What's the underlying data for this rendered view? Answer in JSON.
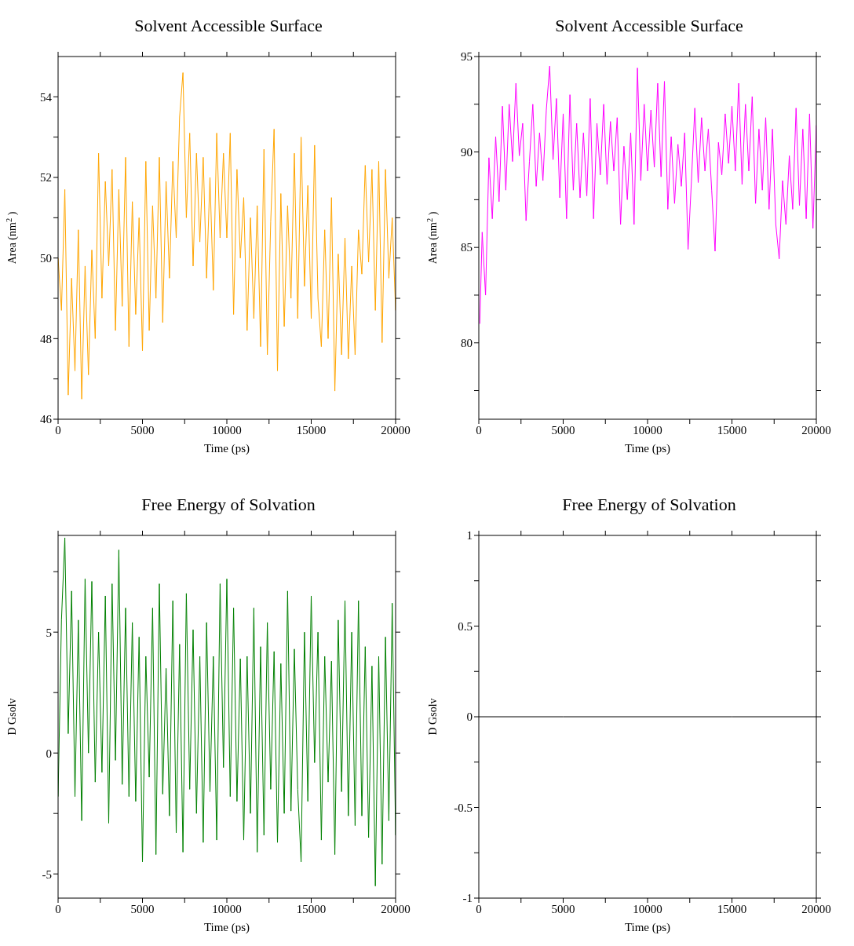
{
  "chart_data": [
    {
      "type": "line",
      "title": "Solvent Accessible Surface",
      "xlabel": "Time (ps)",
      "ylabel": "Area (nm$^{2}$)",
      "color": "#ffa500",
      "xlim": [
        0,
        20000
      ],
      "xticks": [
        0,
        {
          "value": 2500,
          "label": null
        },
        5000,
        {
          "value": 7500,
          "label": null
        },
        10000,
        {
          "value": 12500,
          "label": null
        },
        15000,
        {
          "value": 17500,
          "label": null
        },
        20000
      ],
      "ylim": [
        46,
        55
      ],
      "yticks": [
        46,
        {
          "value": 47,
          "label": null
        },
        48,
        {
          "value": 49,
          "label": null
        },
        50,
        {
          "value": 51,
          "label": null
        },
        52,
        {
          "value": 53,
          "label": null
        },
        54
      ],
      "x": [
        0,
        200,
        400,
        600,
        800,
        1000,
        1200,
        1400,
        1600,
        1800,
        2000,
        2200,
        2400,
        2600,
        2800,
        3000,
        3200,
        3400,
        3600,
        3800,
        4000,
        4200,
        4400,
        4600,
        4800,
        5000,
        5200,
        5400,
        5600,
        5800,
        6000,
        6200,
        6400,
        6600,
        6800,
        7000,
        7200,
        7400,
        7600,
        7800,
        8000,
        8200,
        8400,
        8600,
        8800,
        9000,
        9200,
        9400,
        9600,
        9800,
        10000,
        10200,
        10400,
        10600,
        10800,
        11000,
        11200,
        11400,
        11600,
        11800,
        12000,
        12200,
        12400,
        12600,
        12800,
        13000,
        13200,
        13400,
        13600,
        13800,
        14000,
        14200,
        14400,
        14600,
        14800,
        15000,
        15200,
        15400,
        15600,
        15800,
        16000,
        16200,
        16400,
        16600,
        16800,
        17000,
        17200,
        17400,
        17600,
        17800,
        18000,
        18200,
        18400,
        18600,
        18800,
        19000,
        19200,
        19400,
        19600,
        19800,
        20000
      ],
      "values": [
        50,
        48.7,
        51.7,
        46.6,
        49.5,
        47.2,
        50.7,
        46.5,
        49.8,
        47.1,
        50.2,
        48.0,
        52.6,
        49.0,
        51.9,
        49.8,
        52.2,
        48.2,
        51.7,
        48.8,
        52.5,
        47.8,
        51.4,
        48.6,
        51.0,
        47.7,
        52.4,
        48.2,
        51.3,
        49.0,
        52.5,
        48.4,
        51.9,
        49.5,
        52.4,
        50.5,
        53.5,
        54.6,
        51.0,
        53.1,
        49.8,
        52.6,
        50.4,
        52.5,
        49.5,
        52.0,
        49.2,
        53.1,
        50.5,
        52.6,
        50.5,
        53.1,
        48.6,
        52.2,
        50.0,
        51.5,
        48.2,
        51.0,
        48.5,
        51.3,
        47.8,
        52.7,
        47.6,
        50.9,
        53.2,
        47.2,
        51.6,
        48.3,
        51.3,
        49.0,
        52.6,
        48.5,
        53.0,
        49.3,
        51.8,
        48.5,
        52.8,
        49.0,
        47.8,
        50.7,
        48.0,
        51.5,
        46.7,
        50.1,
        47.6,
        50.5,
        47.5,
        49.8,
        47.6,
        50.7,
        49.6,
        52.3,
        49.9,
        52.2,
        48.7,
        52.4,
        47.9,
        52.2,
        49.5,
        51.0,
        48.7
      ]
    },
    {
      "type": "line",
      "title": "Solvent Accessible Surface",
      "xlabel": "Time (ps)",
      "ylabel": "Area (nm$^{2}$)",
      "color": "#ff00ff",
      "xlim": [
        0,
        20000
      ],
      "xticks": [
        0,
        {
          "value": 2500,
          "label": null
        },
        5000,
        {
          "value": 7500,
          "label": null
        },
        10000,
        {
          "value": 12500,
          "label": null
        },
        15000,
        {
          "value": 17500,
          "label": null
        },
        20000
      ],
      "ylim": [
        76,
        95
      ],
      "yticks": [
        {
          "value": 77.5,
          "label": null
        },
        80,
        {
          "value": 82.5,
          "label": null
        },
        85,
        {
          "value": 87.5,
          "label": null
        },
        90,
        {
          "value": 92.5,
          "label": null
        },
        95
      ],
      "x": [
        60,
        200,
        400,
        600,
        800,
        1000,
        1200,
        1400,
        1600,
        1800,
        2000,
        2200,
        2400,
        2600,
        2800,
        3000,
        3200,
        3400,
        3600,
        3800,
        4000,
        4200,
        4400,
        4600,
        4800,
        5000,
        5200,
        5400,
        5600,
        5800,
        6000,
        6200,
        6400,
        6600,
        6800,
        7000,
        7200,
        7400,
        7600,
        7800,
        8000,
        8200,
        8400,
        8600,
        8800,
        9000,
        9200,
        9400,
        9600,
        9800,
        10000,
        10200,
        10400,
        10600,
        10800,
        11000,
        11200,
        11400,
        11600,
        11800,
        12000,
        12200,
        12400,
        12600,
        12800,
        13000,
        13200,
        13400,
        13600,
        13800,
        14000,
        14200,
        14400,
        14600,
        14800,
        15000,
        15200,
        15400,
        15600,
        15800,
        16000,
        16200,
        16400,
        16600,
        16800,
        17000,
        17200,
        17400,
        17600,
        17800,
        18000,
        18200,
        18400,
        18600,
        18800,
        19000,
        19200,
        19400,
        19600,
        19800,
        20000
      ],
      "values": [
        81.0,
        85.8,
        82.5,
        89.7,
        86.5,
        90.8,
        87.4,
        92.4,
        88.0,
        92.5,
        89.5,
        93.6,
        89.8,
        91.5,
        86.4,
        89.5,
        92.5,
        88.2,
        91.0,
        88.5,
        92.2,
        94.5,
        89.6,
        92.8,
        87.6,
        92.0,
        86.5,
        93.0,
        88.0,
        91.5,
        87.6,
        91.0,
        87.7,
        92.8,
        86.5,
        91.5,
        88.8,
        92.5,
        88.3,
        91.6,
        89.0,
        91.8,
        86.2,
        90.3,
        87.5,
        91.0,
        86.2,
        94.4,
        88.5,
        92.5,
        89.0,
        92.2,
        89.2,
        93.6,
        88.7,
        93.7,
        87.0,
        90.8,
        87.3,
        90.4,
        88.2,
        91.0,
        84.9,
        88.5,
        92.3,
        88.4,
        91.8,
        89.0,
        91.2,
        88.0,
        84.8,
        90.5,
        88.8,
        92.0,
        89.4,
        92.4,
        89.0,
        93.6,
        88.3,
        92.5,
        89.0,
        92.9,
        87.3,
        91.2,
        88.0,
        91.8,
        87.0,
        91.2,
        86.2,
        84.4,
        88.5,
        86.2,
        89.8,
        87.0,
        92.3,
        87.2,
        91.2,
        86.5,
        92.0,
        86.0,
        91.4
      ]
    },
    {
      "type": "line",
      "title": "Free Energy of Solvation",
      "xlabel": "Time (ps)",
      "ylabel": "D Gsolv",
      "color": "#008000",
      "xlim": [
        0,
        20000
      ],
      "xticks": [
        0,
        {
          "value": 2500,
          "label": null
        },
        5000,
        {
          "value": 7500,
          "label": null
        },
        10000,
        {
          "value": 12500,
          "label": null
        },
        15000,
        {
          "value": 17500,
          "label": null
        },
        20000
      ],
      "ylim": [
        -6,
        9
      ],
      "yticks": [
        -5,
        {
          "value": -2.5,
          "label": null
        },
        0,
        {
          "value": 2.5,
          "label": null
        },
        5,
        {
          "value": 7.5,
          "label": null
        }
      ],
      "x": [
        0,
        200,
        400,
        600,
        800,
        1000,
        1200,
        1400,
        1600,
        1800,
        2000,
        2200,
        2400,
        2600,
        2800,
        3000,
        3200,
        3400,
        3600,
        3800,
        4000,
        4200,
        4400,
        4600,
        4800,
        5000,
        5200,
        5400,
        5600,
        5800,
        6000,
        6200,
        6400,
        6600,
        6800,
        7000,
        7200,
        7400,
        7600,
        7800,
        8000,
        8200,
        8400,
        8600,
        8800,
        9000,
        9200,
        9400,
        9600,
        9800,
        10000,
        10200,
        10400,
        10600,
        10800,
        11000,
        11200,
        11400,
        11600,
        11800,
        12000,
        12200,
        12400,
        12600,
        12800,
        13000,
        13200,
        13400,
        13600,
        13800,
        14000,
        14200,
        14400,
        14600,
        14800,
        15000,
        15200,
        15400,
        15600,
        15800,
        16000,
        16200,
        16400,
        16600,
        16800,
        17000,
        17200,
        17400,
        17600,
        17800,
        18000,
        18200,
        18400,
        18600,
        18800,
        19000,
        19200,
        19400,
        19600,
        19800,
        20000
      ],
      "values": [
        -1.8,
        5.5,
        8.9,
        0.8,
        6.7,
        -1.8,
        5.5,
        -2.8,
        7.2,
        0.0,
        7.1,
        -1.2,
        5.0,
        -0.8,
        6.5,
        -2.9,
        7.0,
        -0.3,
        8.4,
        -1.3,
        6.0,
        -1.8,
        5.4,
        -2.0,
        4.8,
        -4.5,
        4.0,
        -1.0,
        6.0,
        -4.2,
        7.0,
        -1.7,
        3.5,
        -2.6,
        6.3,
        -3.3,
        4.5,
        -4.1,
        6.6,
        -1.5,
        5.1,
        -2.5,
        4.0,
        -3.7,
        5.4,
        -1.6,
        4.0,
        -3.6,
        7.0,
        -0.6,
        7.2,
        -1.8,
        6.0,
        -2.0,
        3.9,
        -3.6,
        4.0,
        -2.5,
        6.0,
        -4.1,
        4.4,
        -3.4,
        5.4,
        -1.5,
        4.2,
        -3.7,
        3.7,
        -2.5,
        6.7,
        -2.4,
        4.3,
        -1.5,
        -4.5,
        5.0,
        -2.0,
        6.5,
        -0.4,
        5.0,
        -3.6,
        4.0,
        -1.2,
        3.8,
        -4.2,
        5.5,
        -1.6,
        6.3,
        -2.6,
        5.0,
        -3.0,
        6.3,
        -2.6,
        4.4,
        -3.5,
        3.6,
        -5.5,
        4.0,
        -4.6,
        4.8,
        -2.8,
        6.2,
        -3.4
      ]
    },
    {
      "type": "line",
      "title": "Free Energy of Solvation",
      "xlabel": "Time (ps)",
      "ylabel": "D Gsolv",
      "color": "#000000",
      "xlim": [
        0,
        20000
      ],
      "xticks": [
        0,
        {
          "value": 2500,
          "label": null
        },
        5000,
        {
          "value": 7500,
          "label": null
        },
        10000,
        {
          "value": 12500,
          "label": null
        },
        15000,
        {
          "value": 17500,
          "label": null
        },
        20000
      ],
      "ylim": [
        -1,
        1
      ],
      "yticks": [
        -1,
        {
          "value": -0.75,
          "label": null
        },
        -0.5,
        {
          "value": -0.25,
          "label": null
        },
        0,
        {
          "value": 0.25,
          "label": null
        },
        0.5,
        {
          "value": 0.75,
          "label": null
        },
        1
      ],
      "x": [
        0,
        5000,
        10000,
        15000,
        20000
      ],
      "values": [
        0,
        0,
        0,
        0,
        0
      ]
    }
  ]
}
